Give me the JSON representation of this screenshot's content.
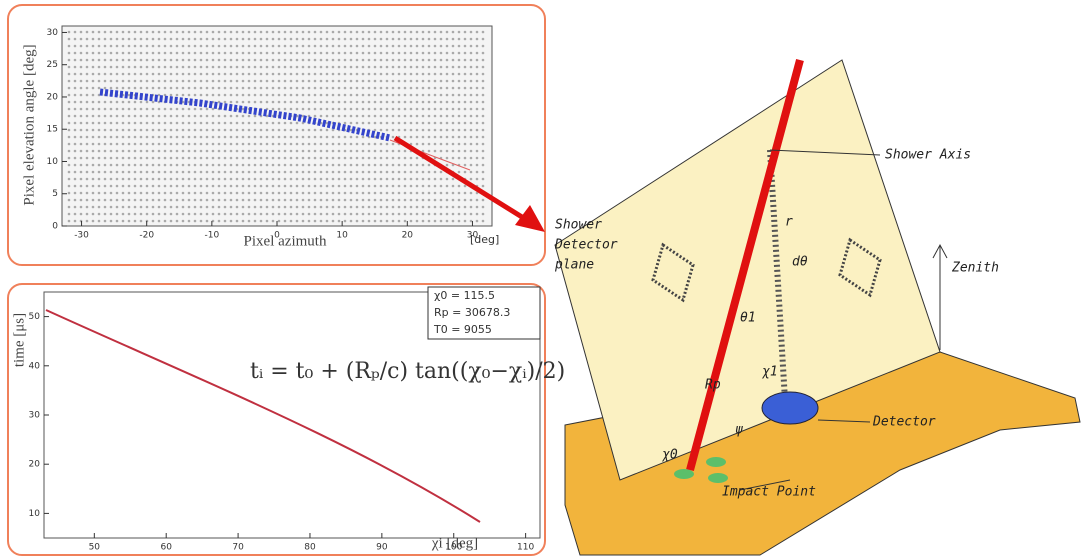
{
  "top_plot": {
    "y_label": "Pixel elevation angle [deg]",
    "x_label": "Pixel azimuth",
    "x_unit": "[deg]",
    "xlim": [
      -33,
      33
    ],
    "xticks": [
      -30,
      -20,
      -10,
      0,
      10,
      20,
      30
    ],
    "ylim": [
      0,
      31
    ],
    "yticks": [
      0,
      5,
      10,
      15,
      20,
      25,
      30
    ]
  },
  "bottom_plot": {
    "y_label": "time [μs]",
    "x_label": "χi [deg]",
    "xlim": [
      43,
      112
    ],
    "xticks": [
      50,
      60,
      70,
      80,
      90,
      100,
      110
    ],
    "ylim": [
      5,
      55
    ],
    "yticks": [
      10,
      20,
      30,
      40,
      50
    ],
    "legend": [
      "χ0 = 115.5",
      "Rp = 30678.3",
      "T0 = 9055"
    ],
    "formula": "tᵢ = t₀ + (Rₚ/c) tan((χ₀−χᵢ)/2)"
  },
  "diagram": {
    "shower_axis": "Shower Axis",
    "sdp": [
      "Shower",
      "Detector",
      "plane"
    ],
    "zenith": "Zenith",
    "detector": "Detector",
    "impact_point": "Impact Point",
    "theta": "θ1",
    "chi1": "χ1",
    "rp": "Rp",
    "chi0": "χ0",
    "psi": "ψ",
    "r": "r",
    "dtheta": "dθ"
  }
}
